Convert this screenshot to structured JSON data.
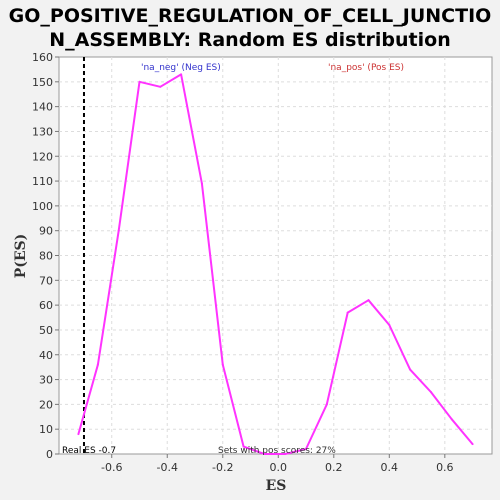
{
  "chart_data": {
    "type": "line",
    "title_lines": [
      "GO_POSITIVE_REGULATION_OF_CELL_JUNCTIO",
      "N_ASSEMBLY: Random ES distribution"
    ],
    "xlabel": "ES",
    "ylabel": "P(ES)",
    "xlim": [
      -0.79,
      0.77
    ],
    "ylim": [
      0,
      160
    ],
    "x_ticks": [
      -0.6,
      -0.4,
      -0.2,
      0.0,
      0.2,
      0.4,
      0.6
    ],
    "x_tick_labels": [
      "-0.6",
      "-0.4",
      "-0.2",
      "0.0",
      "0.2",
      "0.4",
      "0.6"
    ],
    "y_ticks": [
      0,
      10,
      20,
      30,
      40,
      50,
      60,
      70,
      80,
      90,
      100,
      110,
      120,
      130,
      140,
      150,
      160
    ],
    "grid": true,
    "series": [
      {
        "color": "#ff33ff",
        "x": [
          -0.72,
          -0.65,
          -0.575,
          -0.5,
          -0.425,
          -0.35,
          -0.275,
          -0.2,
          -0.125,
          -0.05,
          0.025,
          0.1,
          0.175,
          0.25,
          0.325,
          0.4,
          0.475,
          0.55,
          0.625,
          0.7
        ],
        "y": [
          8,
          36,
          90,
          150,
          148,
          153,
          109,
          36,
          3,
          0,
          0,
          2,
          20,
          57,
          62,
          52,
          34,
          25,
          14,
          4
        ]
      }
    ],
    "real_es": {
      "x": -0.7,
      "label": "Real ES -0.7",
      "color": "#000000"
    },
    "annotations": {
      "neg": {
        "text": "'na_neg' (Neg ES)",
        "color": "#3333cc"
      },
      "pos": {
        "text": "'na_pos' (Pos ES)",
        "color": "#cc3333"
      },
      "sets": {
        "text": "Sets with pos scores: 27%",
        "color": "#333333"
      }
    }
  }
}
